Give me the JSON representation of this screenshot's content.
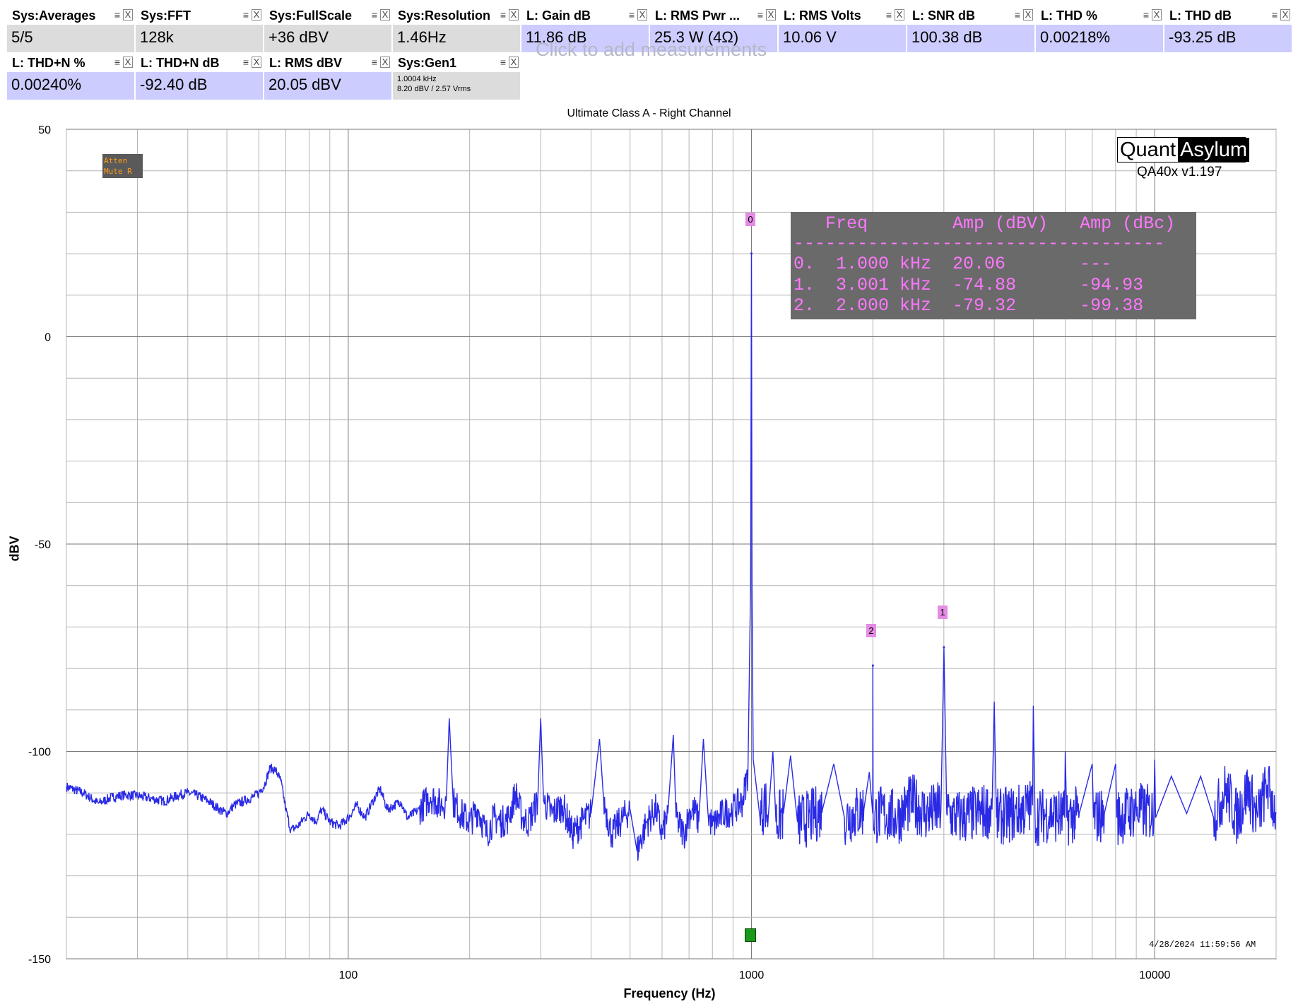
{
  "measurements_row1": [
    {
      "name": "Sys:Averages",
      "value": "5/5",
      "kind": "sys"
    },
    {
      "name": "Sys:FFT",
      "value": "128k",
      "kind": "sys"
    },
    {
      "name": "Sys:FullScale",
      "value": "+36 dBV",
      "kind": "sys"
    },
    {
      "name": "Sys:Resolution",
      "value": "1.46Hz",
      "kind": "sys"
    },
    {
      "name": "L: Gain dB",
      "value": "11.86 dB",
      "kind": "lch"
    },
    {
      "name": "L: RMS Pwr ...",
      "value": "25.3 W (4Ω)",
      "kind": "lch"
    },
    {
      "name": "L: RMS Volts",
      "value": "10.06 V",
      "kind": "lch"
    },
    {
      "name": "L: SNR dB",
      "value": "100.38 dB",
      "kind": "lch"
    },
    {
      "name": "L: THD %",
      "value": "0.00218%",
      "kind": "lch"
    },
    {
      "name": "L: THD dB",
      "value": "-93.25 dB",
      "kind": "lch"
    }
  ],
  "measurements_row2": [
    {
      "name": "L: THD+N %",
      "value": "0.00240%",
      "kind": "lch"
    },
    {
      "name": "L: THD+N dB",
      "value": "-92.40 dB",
      "kind": "lch"
    },
    {
      "name": "L: RMS dBV",
      "value": "20.05 dBV",
      "kind": "lch"
    }
  ],
  "generator": {
    "name": "Sys:Gen1",
    "line1": "1.0004 kHz",
    "line2": "8.20 dBV  / 2.57 Vrms"
  },
  "ghost_text": "Click to add measurements",
  "logo": {
    "part1": "Quant",
    "part2": "Asylum",
    "version": "QA40x v1.197"
  },
  "badge": {
    "line1": "Atten",
    "line2": "Mute R"
  },
  "harmonic_table": {
    "header": "   Freq        Amp (dBV)   Amp (dBc)",
    "rule": "-----------------------------------",
    "rows": [
      "0.  1.000 kHz  20.06       ---",
      "1.  3.001 kHz  -74.88      -94.93",
      "2.  2.000 kHz  -79.32      -99.38"
    ]
  },
  "marker_labels": [
    "0",
    "1",
    "2"
  ],
  "timestamp": "4/28/2024 11:59:56 AM",
  "colors": {
    "trace": "#2a2ae6",
    "grid": "#b4b4b4",
    "sys_bg": "#dcdcdc",
    "lch_bg": "#ccccff",
    "marker": "#e48be4"
  },
  "chart_data": {
    "type": "line",
    "title": "Ultimate Class A - Right Channel",
    "xlabel": "Frequency (Hz)",
    "ylabel": "dBV",
    "xscale": "log",
    "xlim": [
      20,
      20000
    ],
    "ylim": [
      -150,
      50
    ],
    "x_ticks": [
      100,
      1000,
      10000
    ],
    "y_ticks": [
      50,
      0,
      -50,
      -100,
      -150
    ],
    "grid": true,
    "series": [
      {
        "values_spectrum": [
          [
            20,
            -108.5
          ],
          [
            22,
            -110
          ],
          [
            24,
            -112.5
          ],
          [
            26,
            -111
          ],
          [
            28,
            -110.5
          ],
          [
            30,
            -110.7
          ],
          [
            33,
            -111.5
          ],
          [
            35,
            -112
          ],
          [
            38,
            -110.5
          ],
          [
            40,
            -110
          ],
          [
            42,
            -110.5
          ],
          [
            45,
            -112
          ],
          [
            48,
            -114
          ],
          [
            50,
            -115
          ],
          [
            52,
            -113
          ],
          [
            55,
            -112
          ],
          [
            58,
            -111
          ],
          [
            60,
            -110
          ],
          [
            62,
            -108
          ],
          [
            64,
            -104
          ],
          [
            66,
            -104.5
          ],
          [
            68,
            -107
          ],
          [
            70,
            -114
          ],
          [
            72,
            -119
          ],
          [
            75,
            -118
          ],
          [
            78,
            -116
          ],
          [
            80,
            -115
          ],
          [
            83,
            -117
          ],
          [
            86,
            -114
          ],
          [
            90,
            -117
          ],
          [
            95,
            -118
          ],
          [
            100,
            -116
          ],
          [
            105,
            -113
          ],
          [
            110,
            -116
          ],
          [
            115,
            -112
          ],
          [
            120,
            -109
          ],
          [
            125,
            -114
          ],
          [
            130,
            -113
          ],
          [
            135,
            -112
          ],
          [
            140,
            -116
          ],
          [
            150,
            -114
          ],
          [
            160,
            -111
          ],
          [
            170,
            -113
          ],
          [
            175,
            -112
          ],
          [
            178,
            -92
          ],
          [
            182,
            -112
          ],
          [
            190,
            -115
          ],
          [
            200,
            -117
          ],
          [
            210,
            -114
          ],
          [
            220,
            -120
          ],
          [
            230,
            -116
          ],
          [
            240,
            -117
          ],
          [
            250,
            -116
          ],
          [
            260,
            -110
          ],
          [
            270,
            -116
          ],
          [
            280,
            -117
          ],
          [
            295,
            -112
          ],
          [
            300,
            -92
          ],
          [
            305,
            -112
          ],
          [
            320,
            -115
          ],
          [
            340,
            -113
          ],
          [
            360,
            -120
          ],
          [
            380,
            -117
          ],
          [
            400,
            -115
          ],
          [
            420,
            -97
          ],
          [
            430,
            -112
          ],
          [
            450,
            -120
          ],
          [
            480,
            -116
          ],
          [
            500,
            -114
          ],
          [
            520,
            -124
          ],
          [
            550,
            -117
          ],
          [
            580,
            -114
          ],
          [
            600,
            -120
          ],
          [
            620,
            -115
          ],
          [
            640,
            -96
          ],
          [
            650,
            -116
          ],
          [
            680,
            -120
          ],
          [
            700,
            -115
          ],
          [
            720,
            -114
          ],
          [
            740,
            -117
          ],
          [
            760,
            -97
          ],
          [
            780,
            -115
          ],
          [
            800,
            -118
          ],
          [
            850,
            -115
          ],
          [
            900,
            -114
          ],
          [
            950,
            -112
          ],
          [
            980,
            -105
          ],
          [
            995,
            -60
          ],
          [
            1000,
            20
          ],
          [
            1003,
            -60
          ],
          [
            1010,
            -102
          ],
          [
            1050,
            -116
          ],
          [
            1080,
            -112
          ],
          [
            1100,
            -116
          ],
          [
            1130,
            -100
          ],
          [
            1150,
            -117
          ],
          [
            1200,
            -115
          ],
          [
            1250,
            -101
          ],
          [
            1300,
            -117
          ],
          [
            1400,
            -116
          ],
          [
            1500,
            -114
          ],
          [
            1600,
            -103
          ],
          [
            1700,
            -116
          ],
          [
            1800,
            -115
          ],
          [
            1900,
            -114
          ],
          [
            1960,
            -105
          ],
          [
            1998,
            -115
          ],
          [
            2000,
            -79
          ],
          [
            2003,
            -116
          ],
          [
            2100,
            -115
          ],
          [
            2300,
            -116
          ],
          [
            2500,
            -112
          ],
          [
            2700,
            -115
          ],
          [
            2950,
            -114
          ],
          [
            3001,
            -75
          ],
          [
            3050,
            -115
          ],
          [
            3300,
            -116
          ],
          [
            3600,
            -115
          ],
          [
            3950,
            -114
          ],
          [
            4000,
            -88
          ],
          [
            4050,
            -116
          ],
          [
            4500,
            -115
          ],
          [
            4980,
            -113
          ],
          [
            5000,
            -89
          ],
          [
            5050,
            -116
          ],
          [
            5500,
            -115
          ],
          [
            5980,
            -116
          ],
          [
            6000,
            -100
          ],
          [
            6050,
            -116
          ],
          [
            6500,
            -115
          ],
          [
            7000,
            -103
          ],
          [
            7050,
            -116
          ],
          [
            7500,
            -115
          ],
          [
            8000,
            -103
          ],
          [
            8050,
            -116
          ],
          [
            9000,
            -114
          ],
          [
            9950,
            -115
          ],
          [
            10000,
            -102
          ],
          [
            10050,
            -116
          ],
          [
            11000,
            -106
          ],
          [
            12000,
            -115
          ],
          [
            13000,
            -106
          ],
          [
            14000,
            -116
          ],
          [
            15000,
            -109
          ],
          [
            16000,
            -116
          ],
          [
            17000,
            -109
          ],
          [
            18000,
            -116
          ],
          [
            19000,
            -108
          ],
          [
            20000,
            -115
          ]
        ],
        "noise_floor_hf": [
          -125,
          -108
        ]
      }
    ],
    "markers": [
      {
        "label": "0",
        "x": 1000,
        "y": 20.06
      },
      {
        "label": "1",
        "x": 3001,
        "y": -74.88
      },
      {
        "label": "2",
        "x": 2000,
        "y": -79.32
      }
    ]
  }
}
